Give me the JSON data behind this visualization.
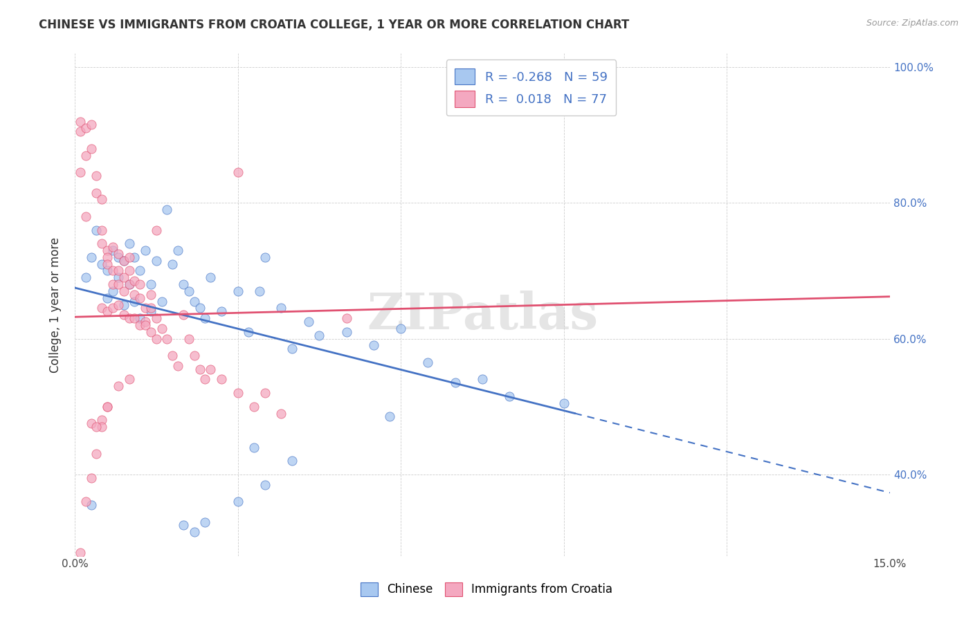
{
  "title": "CHINESE VS IMMIGRANTS FROM CROATIA COLLEGE, 1 YEAR OR MORE CORRELATION CHART",
  "source": "Source: ZipAtlas.com",
  "xlim": [
    0.0,
    0.15
  ],
  "ylim": [
    0.28,
    1.02
  ],
  "ylabel": "College, 1 year or more",
  "legend_labels": [
    "Chinese",
    "Immigrants from Croatia"
  ],
  "color_blue": "#A8C8F0",
  "color_pink": "#F4A8C0",
  "trendline_blue_color": "#4472C4",
  "trendline_pink_color": "#E05070",
  "watermark": "ZIPatlas",
  "trendline_blue_x0": 0.0,
  "trendline_blue_y0": 0.675,
  "trendline_blue_x1": 0.092,
  "trendline_blue_y1": 0.49,
  "trendline_blue_dash_x0": 0.092,
  "trendline_blue_dash_y0": 0.49,
  "trendline_blue_dash_x1": 0.15,
  "trendline_blue_dash_y1": 0.373,
  "trendline_pink_x0": 0.0,
  "trendline_pink_y0": 0.632,
  "trendline_pink_x1": 0.15,
  "trendline_pink_y1": 0.662,
  "blue_scatter": [
    [
      0.002,
      0.69
    ],
    [
      0.003,
      0.72
    ],
    [
      0.004,
      0.76
    ],
    [
      0.005,
      0.71
    ],
    [
      0.006,
      0.7
    ],
    [
      0.006,
      0.66
    ],
    [
      0.007,
      0.73
    ],
    [
      0.007,
      0.67
    ],
    [
      0.008,
      0.72
    ],
    [
      0.008,
      0.69
    ],
    [
      0.009,
      0.715
    ],
    [
      0.009,
      0.65
    ],
    [
      0.01,
      0.74
    ],
    [
      0.01,
      0.68
    ],
    [
      0.011,
      0.72
    ],
    [
      0.011,
      0.655
    ],
    [
      0.012,
      0.7
    ],
    [
      0.012,
      0.63
    ],
    [
      0.013,
      0.73
    ],
    [
      0.014,
      0.68
    ],
    [
      0.014,
      0.64
    ],
    [
      0.015,
      0.715
    ],
    [
      0.016,
      0.655
    ],
    [
      0.017,
      0.79
    ],
    [
      0.018,
      0.71
    ],
    [
      0.019,
      0.73
    ],
    [
      0.02,
      0.68
    ],
    [
      0.021,
      0.67
    ],
    [
      0.022,
      0.655
    ],
    [
      0.023,
      0.645
    ],
    [
      0.024,
      0.63
    ],
    [
      0.025,
      0.69
    ],
    [
      0.027,
      0.64
    ],
    [
      0.03,
      0.67
    ],
    [
      0.032,
      0.61
    ],
    [
      0.034,
      0.67
    ],
    [
      0.035,
      0.72
    ],
    [
      0.038,
      0.645
    ],
    [
      0.04,
      0.585
    ],
    [
      0.043,
      0.625
    ],
    [
      0.045,
      0.605
    ],
    [
      0.05,
      0.61
    ],
    [
      0.055,
      0.59
    ],
    [
      0.06,
      0.615
    ],
    [
      0.065,
      0.565
    ],
    [
      0.07,
      0.535
    ],
    [
      0.075,
      0.54
    ],
    [
      0.08,
      0.515
    ],
    [
      0.003,
      0.355
    ],
    [
      0.02,
      0.325
    ],
    [
      0.033,
      0.44
    ],
    [
      0.035,
      0.385
    ],
    [
      0.04,
      0.42
    ],
    [
      0.058,
      0.485
    ],
    [
      0.09,
      0.505
    ],
    [
      0.022,
      0.315
    ],
    [
      0.024,
      0.33
    ],
    [
      0.03,
      0.36
    ]
  ],
  "pink_scatter": [
    [
      0.001,
      0.92
    ],
    [
      0.001,
      0.905
    ],
    [
      0.001,
      0.845
    ],
    [
      0.002,
      0.91
    ],
    [
      0.002,
      0.87
    ],
    [
      0.002,
      0.78
    ],
    [
      0.003,
      0.915
    ],
    [
      0.003,
      0.88
    ],
    [
      0.003,
      0.475
    ],
    [
      0.004,
      0.84
    ],
    [
      0.004,
      0.815
    ],
    [
      0.004,
      0.43
    ],
    [
      0.005,
      0.805
    ],
    [
      0.005,
      0.76
    ],
    [
      0.005,
      0.74
    ],
    [
      0.005,
      0.645
    ],
    [
      0.005,
      0.48
    ],
    [
      0.006,
      0.73
    ],
    [
      0.006,
      0.72
    ],
    [
      0.006,
      0.71
    ],
    [
      0.006,
      0.64
    ],
    [
      0.006,
      0.5
    ],
    [
      0.007,
      0.735
    ],
    [
      0.007,
      0.7
    ],
    [
      0.007,
      0.68
    ],
    [
      0.007,
      0.645
    ],
    [
      0.008,
      0.725
    ],
    [
      0.008,
      0.7
    ],
    [
      0.008,
      0.68
    ],
    [
      0.008,
      0.65
    ],
    [
      0.009,
      0.715
    ],
    [
      0.009,
      0.69
    ],
    [
      0.009,
      0.67
    ],
    [
      0.009,
      0.635
    ],
    [
      0.01,
      0.72
    ],
    [
      0.01,
      0.7
    ],
    [
      0.01,
      0.68
    ],
    [
      0.01,
      0.63
    ],
    [
      0.011,
      0.685
    ],
    [
      0.011,
      0.665
    ],
    [
      0.011,
      0.63
    ],
    [
      0.012,
      0.68
    ],
    [
      0.012,
      0.66
    ],
    [
      0.012,
      0.62
    ],
    [
      0.013,
      0.645
    ],
    [
      0.013,
      0.625
    ],
    [
      0.013,
      0.62
    ],
    [
      0.014,
      0.665
    ],
    [
      0.014,
      0.645
    ],
    [
      0.014,
      0.61
    ],
    [
      0.015,
      0.63
    ],
    [
      0.015,
      0.6
    ],
    [
      0.015,
      0.76
    ],
    [
      0.016,
      0.615
    ],
    [
      0.017,
      0.6
    ],
    [
      0.018,
      0.575
    ],
    [
      0.019,
      0.56
    ],
    [
      0.02,
      0.635
    ],
    [
      0.021,
      0.6
    ],
    [
      0.022,
      0.575
    ],
    [
      0.023,
      0.555
    ],
    [
      0.024,
      0.54
    ],
    [
      0.025,
      0.555
    ],
    [
      0.027,
      0.54
    ],
    [
      0.03,
      0.52
    ],
    [
      0.03,
      0.845
    ],
    [
      0.033,
      0.5
    ],
    [
      0.035,
      0.52
    ],
    [
      0.038,
      0.49
    ],
    [
      0.001,
      0.285
    ],
    [
      0.002,
      0.36
    ],
    [
      0.003,
      0.395
    ],
    [
      0.05,
      0.63
    ],
    [
      0.005,
      0.47
    ],
    [
      0.004,
      0.47
    ],
    [
      0.006,
      0.5
    ],
    [
      0.008,
      0.53
    ],
    [
      0.01,
      0.54
    ]
  ],
  "x_tick_vals": [
    0.0,
    0.03,
    0.06,
    0.09,
    0.12,
    0.15
  ],
  "x_tick_labels_bottom": [
    "0.0%",
    "",
    "",
    "",
    "",
    "15.0%"
  ],
  "y_tick_vals": [
    0.4,
    0.6,
    0.8,
    1.0
  ],
  "y_tick_labels": [
    "40.0%",
    "60.0%",
    "80.0%",
    "100.0%"
  ]
}
